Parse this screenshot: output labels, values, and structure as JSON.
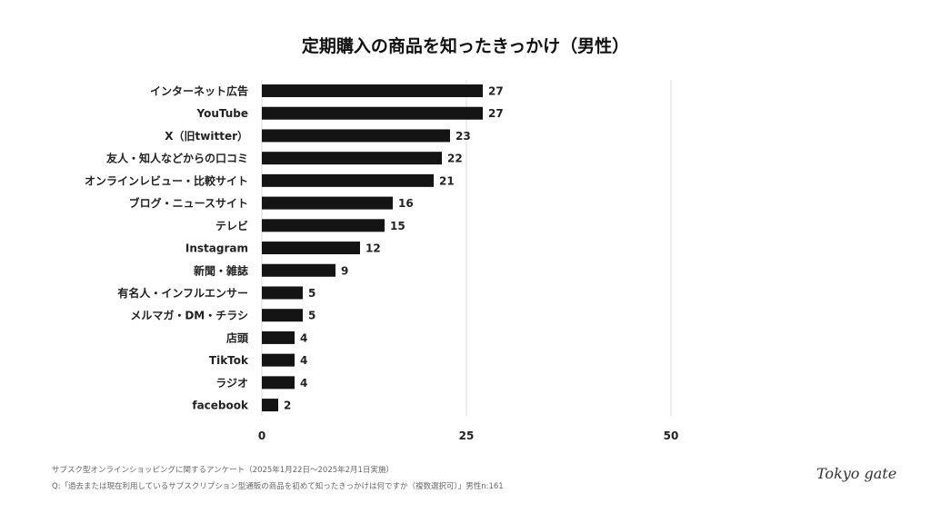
{
  "chart_data": {
    "type": "bar",
    "orientation": "horizontal",
    "title": "定期購入の商品を知ったきっかけ（男性）",
    "categories": [
      "インターネット広告",
      "YouTube",
      "X（旧twitter）",
      "友人・知人などからの口コミ",
      "オンラインレビュー・比較サイト",
      "ブログ・ニュースサイト",
      "テレビ",
      "Instagram",
      "新聞・雑誌",
      "有名人・インフルエンサー",
      "メルマガ・DM・チラシ",
      "店頭",
      "TikTok",
      "ラジオ",
      "facebook"
    ],
    "values": [
      27,
      27,
      23,
      22,
      21,
      16,
      15,
      12,
      9,
      5,
      5,
      4,
      4,
      4,
      2
    ],
    "xlim": [
      0,
      50
    ],
    "xticks": [
      "0",
      "25",
      "50"
    ],
    "grid": true,
    "bar_color": "#141414",
    "xlabel": "",
    "ylabel": ""
  },
  "footer": {
    "line1": "サブスク型オンラインショッピングに関するアンケート（2025年1月22日〜2025年2月1日実施）",
    "line2": "Q:「過去または現在利用しているサブスクリプション型通販の商品を初めて知ったきっかけは何ですか（複数選択可）」男性n:161"
  },
  "logo": "Tokyo gate"
}
